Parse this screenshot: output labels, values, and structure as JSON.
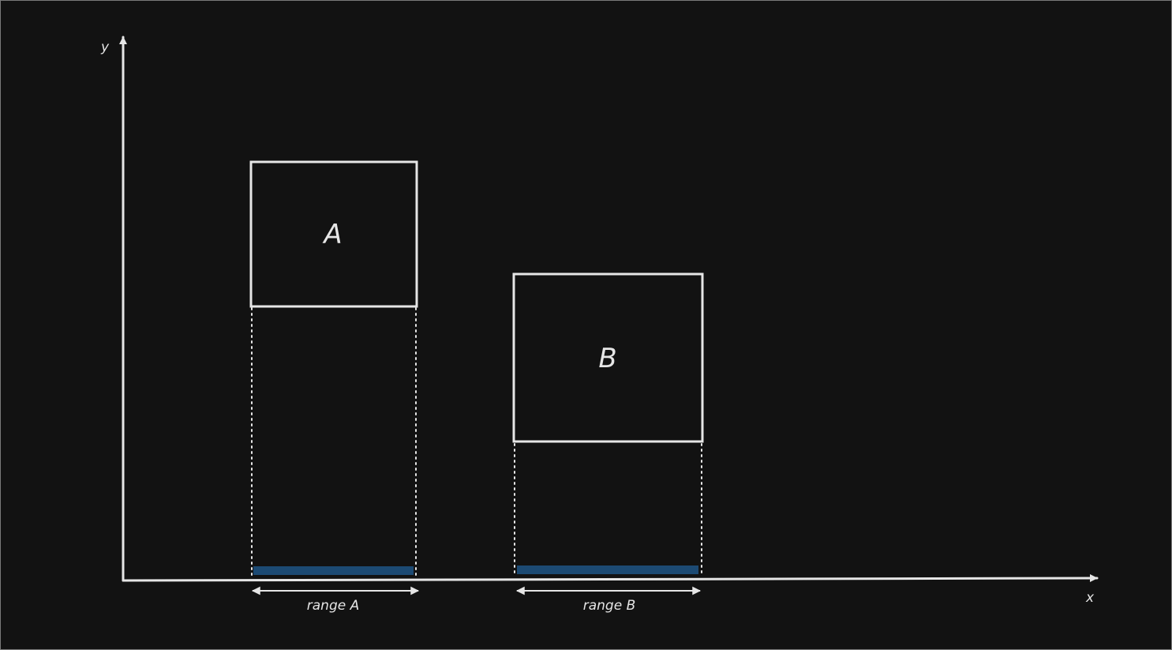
{
  "diagram": {
    "axes": {
      "x_label": "x",
      "y_label": "y"
    },
    "boxes": [
      {
        "id": "A",
        "label": "A",
        "range_label": "range A"
      },
      {
        "id": "B",
        "label": "B",
        "range_label": "range B"
      }
    ],
    "colors": {
      "background": "#121212",
      "stroke": "#e6e6e6",
      "range_bar": "#1c4a73",
      "border": "#7a7a7a"
    }
  }
}
